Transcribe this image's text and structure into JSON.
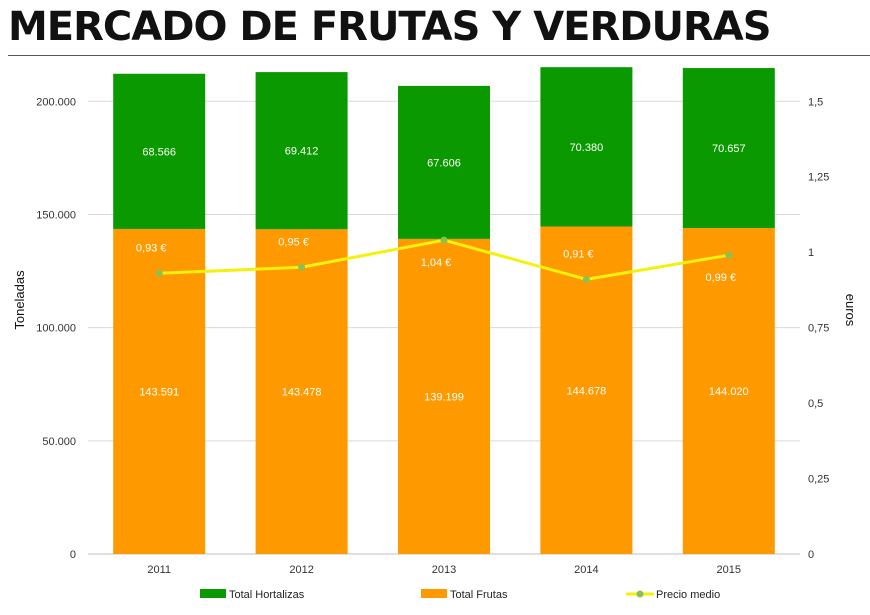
{
  "title": "MERCADO DE FRUTAS Y VERDURAS",
  "colors": {
    "hortalizas": "#0a9a00",
    "frutas": "#ff9900",
    "precio": "#f2f20a",
    "precio_marker": "#8cc152"
  },
  "chart_data": {
    "type": "bar",
    "stacked": true,
    "categories": [
      "2011",
      "2012",
      "2013",
      "2014",
      "2015"
    ],
    "series": [
      {
        "name": "Total Frutas",
        "values": [
          143591,
          143478,
          139199,
          144678,
          144020
        ],
        "labels": [
          "143.591",
          "143.478",
          "139.199",
          "144.678",
          "144.020"
        ]
      },
      {
        "name": "Total Hortalizas",
        "values": [
          68566,
          69412,
          67606,
          70380,
          70657
        ],
        "labels": [
          "68.566",
          "69.412",
          "67.606",
          "70.380",
          "70.657"
        ]
      }
    ],
    "line_series": {
      "name": "Precio medio",
      "axis": "right",
      "values": [
        0.93,
        0.95,
        1.04,
        0.91,
        0.99
      ],
      "labels": [
        "0,93 €",
        "0,95 €",
        "1,04 €",
        "0,91 €",
        "0,99 €"
      ]
    },
    "ylabel": "Toneladas",
    "y2label": "euros",
    "ylim": [
      0,
      220000
    ],
    "y2lim": [
      0,
      1.65
    ],
    "yticks": [
      0,
      50000,
      100000,
      150000,
      200000
    ],
    "yticklabels": [
      "0",
      "50.000",
      "100.000",
      "150.000",
      "200.000"
    ],
    "y2ticks": [
      0,
      0.25,
      0.5,
      0.75,
      1,
      1.25,
      1.5
    ],
    "y2ticklabels": [
      "0",
      "0,25",
      "0,5",
      "0,75",
      "1",
      "1,25",
      "1,5"
    ],
    "grid": true,
    "legend": "bottom"
  }
}
